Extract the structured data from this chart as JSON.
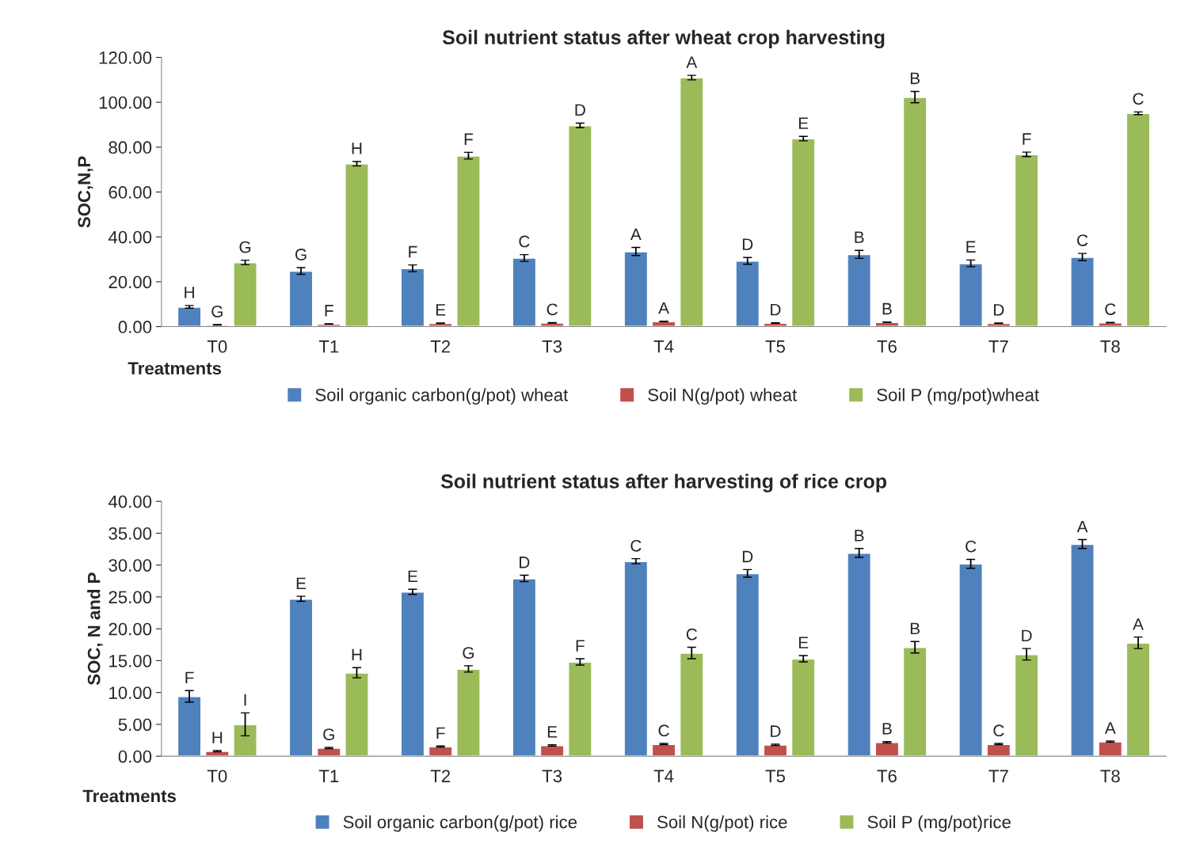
{
  "chart_data": [
    {
      "type": "bar",
      "title": "Soil nutrient status after wheat crop harvesting",
      "xlabel": "Treatments",
      "ylabel": "SOC,N,P",
      "categories": [
        "T0",
        "T1",
        "T2",
        "T3",
        "T4",
        "T5",
        "T6",
        "T7",
        "T8"
      ],
      "series": [
        {
          "name": "Soil organic carbon(g/pot) wheat",
          "color": "#4f81bd",
          "values": [
            8.8,
            24.8,
            26.0,
            30.6,
            33.5,
            29.3,
            32.2,
            28.2,
            31.0
          ],
          "errors": [
            0.6,
            1.5,
            1.5,
            1.5,
            1.8,
            1.5,
            1.8,
            1.5,
            1.6
          ],
          "value_labels": [
            "H",
            "G",
            "F",
            "C",
            "A",
            "D",
            "B",
            "E",
            "C"
          ]
        },
        {
          "name": "Soil N(g/pot) wheat",
          "color": "#c0504d",
          "values": [
            0.8,
            1.2,
            1.5,
            1.7,
            2.3,
            1.6,
            2.0,
            1.5,
            1.8
          ],
          "errors": [
            0.1,
            0.1,
            0.1,
            0.1,
            0.1,
            0.1,
            0.1,
            0.1,
            0.1
          ],
          "value_labels": [
            "G",
            "F",
            "E",
            "C",
            "A",
            "D",
            "B",
            "D",
            "C"
          ]
        },
        {
          "name": "Soil P (mg/pot)wheat",
          "color": "#9bbb59",
          "values": [
            28.6,
            72.6,
            76.2,
            89.7,
            111.0,
            83.8,
            102.3,
            76.8,
            95.1
          ],
          "errors": [
            1.0,
            1.0,
            1.5,
            1.0,
            1.0,
            1.0,
            2.5,
            1.0,
            0.6
          ],
          "value_labels": [
            "G",
            "H",
            "F",
            "D",
            "A",
            "E",
            "B",
            "F",
            "C"
          ]
        }
      ],
      "ylim": [
        0,
        120
      ],
      "yticks": [
        {
          "value": 0,
          "label": "0.00"
        },
        {
          "value": 20,
          "label": "20.00"
        },
        {
          "value": 40,
          "label": "40.00"
        },
        {
          "value": 60,
          "label": "60.00"
        },
        {
          "value": 80,
          "label": "80.00"
        },
        {
          "value": 100,
          "label": "100.00"
        },
        {
          "value": 120,
          "label": "120.00"
        }
      ],
      "grid": false,
      "legend": "bottom"
    },
    {
      "type": "bar",
      "title": "Soil nutrient status after harvesting of rice crop",
      "xlabel": "Treatments",
      "ylabel": "SOC, N and P",
      "categories": [
        "T0",
        "T1",
        "T2",
        "T3",
        "T4",
        "T5",
        "T6",
        "T7",
        "T8"
      ],
      "series": [
        {
          "name": "Soil organic carbon(g/pot) rice",
          "color": "#4f81bd",
          "values": [
            9.4,
            24.7,
            25.8,
            27.9,
            30.6,
            28.7,
            31.9,
            30.2,
            33.3
          ],
          "errors": [
            0.9,
            0.4,
            0.4,
            0.5,
            0.4,
            0.6,
            0.7,
            0.7,
            0.7
          ],
          "value_labels": [
            "F",
            "E",
            "E",
            "D",
            "C",
            "D",
            "B",
            "C",
            "A"
          ]
        },
        {
          "name": "Soil N(g/pot) rice",
          "color": "#c0504d",
          "values": [
            0.8,
            1.3,
            1.5,
            1.7,
            1.9,
            1.8,
            2.2,
            1.9,
            2.3
          ],
          "errors": [
            0.1,
            0.1,
            0.1,
            0.1,
            0.1,
            0.1,
            0.1,
            0.1,
            0.1
          ],
          "value_labels": [
            "H",
            "G",
            "F",
            "E",
            "C",
            "D",
            "B",
            "C",
            "A"
          ]
        },
        {
          "name": "Soil P (mg/pot)rice",
          "color": "#9bbb59",
          "values": [
            5.0,
            13.1,
            13.7,
            14.8,
            16.2,
            15.3,
            17.1,
            16.0,
            17.8
          ],
          "errors": [
            1.8,
            0.8,
            0.5,
            0.5,
            0.9,
            0.5,
            0.9,
            0.9,
            0.9
          ],
          "value_labels": [
            "I",
            "H",
            "G",
            "F",
            "C",
            "E",
            "B",
            "D",
            "A"
          ]
        }
      ],
      "ylim": [
        0,
        40
      ],
      "yticks": [
        {
          "value": 0,
          "label": "0.00"
        },
        {
          "value": 5,
          "label": "5.00"
        },
        {
          "value": 10,
          "label": "10.00"
        },
        {
          "value": 15,
          "label": "15.00"
        },
        {
          "value": 20,
          "label": "20.00"
        },
        {
          "value": 25,
          "label": "25.00"
        },
        {
          "value": 30,
          "label": "30.00"
        },
        {
          "value": 35,
          "label": "35.00"
        },
        {
          "value": 40,
          "label": "40.00"
        }
      ],
      "grid": false,
      "legend": "bottom"
    }
  ]
}
